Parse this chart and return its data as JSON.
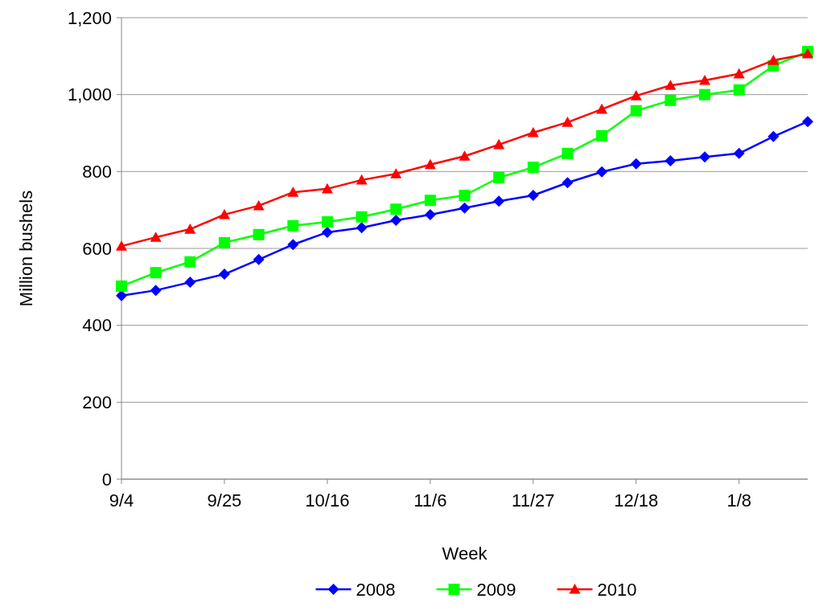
{
  "chart_data": {
    "type": "line",
    "xlabel": "Week",
    "ylabel": "Million bushels",
    "categories": [
      "9/4",
      null,
      null,
      "9/25",
      null,
      null,
      "10/16",
      null,
      null,
      "11/6",
      null,
      null,
      "11/27",
      null,
      null,
      "12/18",
      null,
      null,
      "1/8",
      null,
      null
    ],
    "series": [
      {
        "name": "2008",
        "color": "#0000ff",
        "marker": "diamond",
        "values": [
          477,
          491,
          512,
          533,
          571,
          610,
          642,
          654,
          673,
          688,
          705,
          723,
          738,
          771,
          799,
          820,
          828,
          838,
          847,
          891,
          930
        ]
      },
      {
        "name": "2009",
        "color": "#00ff00",
        "marker": "square",
        "values": [
          502,
          537,
          565,
          615,
          636,
          659,
          669,
          682,
          702,
          725,
          738,
          784,
          811,
          847,
          893,
          958,
          985,
          1000,
          1012,
          1075,
          1112
        ]
      },
      {
        "name": "2010",
        "color": "#ff0000",
        "marker": "triangle",
        "values": [
          606,
          629,
          650,
          688,
          711,
          746,
          755,
          778,
          794,
          818,
          840,
          870,
          901,
          928,
          962,
          997,
          1024,
          1037,
          1054,
          1089,
          1106
        ]
      }
    ],
    "ylim": [
      0,
      1200
    ],
    "yticks": [
      {
        "value": 0,
        "label": "0"
      },
      {
        "value": 200,
        "label": "200"
      },
      {
        "value": 400,
        "label": "400"
      },
      {
        "value": 600,
        "label": "600"
      },
      {
        "value": 800,
        "label": "800"
      },
      {
        "value": 1000,
        "label": "1,000"
      },
      {
        "value": 1200,
        "label": "1,200"
      }
    ],
    "grid": "y",
    "legend": "bottom"
  }
}
